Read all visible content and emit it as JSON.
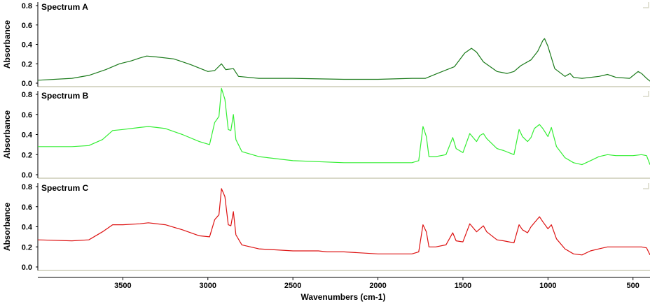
{
  "chart_data": {
    "type": "line",
    "xlabel": "Wavenumbers (cm-1)",
    "xlim": [
      4000,
      400
    ],
    "x_reversed": true,
    "x_ticks": [
      "3500",
      "3000",
      "2500",
      "2000",
      "1500",
      "1000",
      "500"
    ],
    "grid": false,
    "panels": [
      {
        "title": "Spectrum A",
        "ylabel": "Absorbance",
        "ylim": [
          0,
          0.8
        ],
        "y_ticks": [
          "0.0",
          "0.2",
          "0.4",
          "0.6",
          "0.8"
        ],
        "color": "#1a7a1a",
        "points": [
          [
            4000,
            0.03
          ],
          [
            3800,
            0.05
          ],
          [
            3700,
            0.08
          ],
          [
            3600,
            0.14
          ],
          [
            3520,
            0.2
          ],
          [
            3450,
            0.23
          ],
          [
            3400,
            0.26
          ],
          [
            3360,
            0.28
          ],
          [
            3300,
            0.27
          ],
          [
            3200,
            0.25
          ],
          [
            3100,
            0.19
          ],
          [
            3000,
            0.12
          ],
          [
            2960,
            0.13
          ],
          [
            2920,
            0.2
          ],
          [
            2895,
            0.14
          ],
          [
            2850,
            0.15
          ],
          [
            2820,
            0.07
          ],
          [
            2700,
            0.05
          ],
          [
            2500,
            0.05
          ],
          [
            2200,
            0.04
          ],
          [
            2000,
            0.04
          ],
          [
            1800,
            0.05
          ],
          [
            1720,
            0.05
          ],
          [
            1650,
            0.1
          ],
          [
            1550,
            0.17
          ],
          [
            1490,
            0.31
          ],
          [
            1450,
            0.36
          ],
          [
            1420,
            0.32
          ],
          [
            1380,
            0.22
          ],
          [
            1300,
            0.12
          ],
          [
            1240,
            0.1
          ],
          [
            1200,
            0.12
          ],
          [
            1160,
            0.18
          ],
          [
            1100,
            0.24
          ],
          [
            1060,
            0.33
          ],
          [
            1030,
            0.44
          ],
          [
            1020,
            0.46
          ],
          [
            1000,
            0.38
          ],
          [
            960,
            0.15
          ],
          [
            900,
            0.07
          ],
          [
            870,
            0.1
          ],
          [
            850,
            0.06
          ],
          [
            800,
            0.05
          ],
          [
            700,
            0.07
          ],
          [
            650,
            0.09
          ],
          [
            600,
            0.06
          ],
          [
            520,
            0.05
          ],
          [
            470,
            0.12
          ],
          [
            450,
            0.1
          ],
          [
            420,
            0.05
          ],
          [
            400,
            0.02
          ]
        ]
      },
      {
        "title": "Spectrum B",
        "ylabel": "Absorbance",
        "ylim": [
          0,
          0.8
        ],
        "y_ticks": [
          "0.0",
          "0.2",
          "0.4",
          "0.6",
          "0.8"
        ],
        "color": "#33ee33",
        "points": [
          [
            4000,
            0.28
          ],
          [
            3800,
            0.28
          ],
          [
            3700,
            0.29
          ],
          [
            3620,
            0.35
          ],
          [
            3560,
            0.44
          ],
          [
            3500,
            0.45
          ],
          [
            3400,
            0.47
          ],
          [
            3350,
            0.48
          ],
          [
            3250,
            0.46
          ],
          [
            3150,
            0.4
          ],
          [
            3050,
            0.33
          ],
          [
            2990,
            0.3
          ],
          [
            2960,
            0.52
          ],
          [
            2935,
            0.58
          ],
          [
            2920,
            0.86
          ],
          [
            2900,
            0.75
          ],
          [
            2880,
            0.45
          ],
          [
            2865,
            0.44
          ],
          [
            2850,
            0.6
          ],
          [
            2835,
            0.35
          ],
          [
            2800,
            0.23
          ],
          [
            2700,
            0.18
          ],
          [
            2500,
            0.14
          ],
          [
            2200,
            0.12
          ],
          [
            2000,
            0.12
          ],
          [
            1800,
            0.12
          ],
          [
            1760,
            0.14
          ],
          [
            1735,
            0.48
          ],
          [
            1715,
            0.38
          ],
          [
            1700,
            0.18
          ],
          [
            1660,
            0.18
          ],
          [
            1600,
            0.2
          ],
          [
            1560,
            0.37
          ],
          [
            1540,
            0.26
          ],
          [
            1500,
            0.22
          ],
          [
            1460,
            0.41
          ],
          [
            1420,
            0.33
          ],
          [
            1400,
            0.39
          ],
          [
            1380,
            0.41
          ],
          [
            1360,
            0.36
          ],
          [
            1300,
            0.26
          ],
          [
            1260,
            0.24
          ],
          [
            1200,
            0.2
          ],
          [
            1170,
            0.45
          ],
          [
            1150,
            0.38
          ],
          [
            1120,
            0.33
          ],
          [
            1100,
            0.37
          ],
          [
            1080,
            0.46
          ],
          [
            1050,
            0.5
          ],
          [
            1030,
            0.46
          ],
          [
            1000,
            0.38
          ],
          [
            980,
            0.47
          ],
          [
            950,
            0.28
          ],
          [
            900,
            0.17
          ],
          [
            850,
            0.12
          ],
          [
            800,
            0.1
          ],
          [
            750,
            0.14
          ],
          [
            700,
            0.18
          ],
          [
            650,
            0.2
          ],
          [
            600,
            0.19
          ],
          [
            500,
            0.19
          ],
          [
            450,
            0.2
          ],
          [
            420,
            0.19
          ],
          [
            400,
            0.1
          ]
        ]
      },
      {
        "title": "Spectrum C",
        "ylabel": "Absorbance",
        "ylim": [
          0,
          0.8
        ],
        "y_ticks": [
          "0.0",
          "0.2",
          "0.4",
          "0.6",
          "0.8"
        ],
        "color": "#dd1111",
        "points": [
          [
            4000,
            0.27
          ],
          [
            3800,
            0.26
          ],
          [
            3700,
            0.27
          ],
          [
            3620,
            0.35
          ],
          [
            3560,
            0.42
          ],
          [
            3500,
            0.42
          ],
          [
            3400,
            0.43
          ],
          [
            3350,
            0.44
          ],
          [
            3250,
            0.42
          ],
          [
            3150,
            0.37
          ],
          [
            3050,
            0.31
          ],
          [
            2990,
            0.3
          ],
          [
            2960,
            0.47
          ],
          [
            2935,
            0.52
          ],
          [
            2920,
            0.78
          ],
          [
            2900,
            0.7
          ],
          [
            2880,
            0.42
          ],
          [
            2865,
            0.41
          ],
          [
            2850,
            0.55
          ],
          [
            2835,
            0.32
          ],
          [
            2800,
            0.22
          ],
          [
            2700,
            0.18
          ],
          [
            2500,
            0.16
          ],
          [
            2350,
            0.16
          ],
          [
            2300,
            0.15
          ],
          [
            2200,
            0.15
          ],
          [
            2000,
            0.13
          ],
          [
            1800,
            0.13
          ],
          [
            1760,
            0.15
          ],
          [
            1735,
            0.42
          ],
          [
            1715,
            0.35
          ],
          [
            1700,
            0.2
          ],
          [
            1660,
            0.2
          ],
          [
            1600,
            0.22
          ],
          [
            1560,
            0.34
          ],
          [
            1540,
            0.26
          ],
          [
            1500,
            0.25
          ],
          [
            1460,
            0.43
          ],
          [
            1420,
            0.35
          ],
          [
            1400,
            0.38
          ],
          [
            1380,
            0.41
          ],
          [
            1360,
            0.35
          ],
          [
            1300,
            0.27
          ],
          [
            1260,
            0.26
          ],
          [
            1200,
            0.24
          ],
          [
            1170,
            0.42
          ],
          [
            1150,
            0.37
          ],
          [
            1120,
            0.34
          ],
          [
            1100,
            0.4
          ],
          [
            1080,
            0.44
          ],
          [
            1050,
            0.5
          ],
          [
            1030,
            0.45
          ],
          [
            1000,
            0.38
          ],
          [
            980,
            0.42
          ],
          [
            950,
            0.28
          ],
          [
            900,
            0.18
          ],
          [
            850,
            0.13
          ],
          [
            800,
            0.12
          ],
          [
            750,
            0.16
          ],
          [
            700,
            0.18
          ],
          [
            650,
            0.2
          ],
          [
            600,
            0.2
          ],
          [
            500,
            0.2
          ],
          [
            450,
            0.2
          ],
          [
            420,
            0.19
          ],
          [
            400,
            0.12
          ]
        ]
      }
    ]
  }
}
